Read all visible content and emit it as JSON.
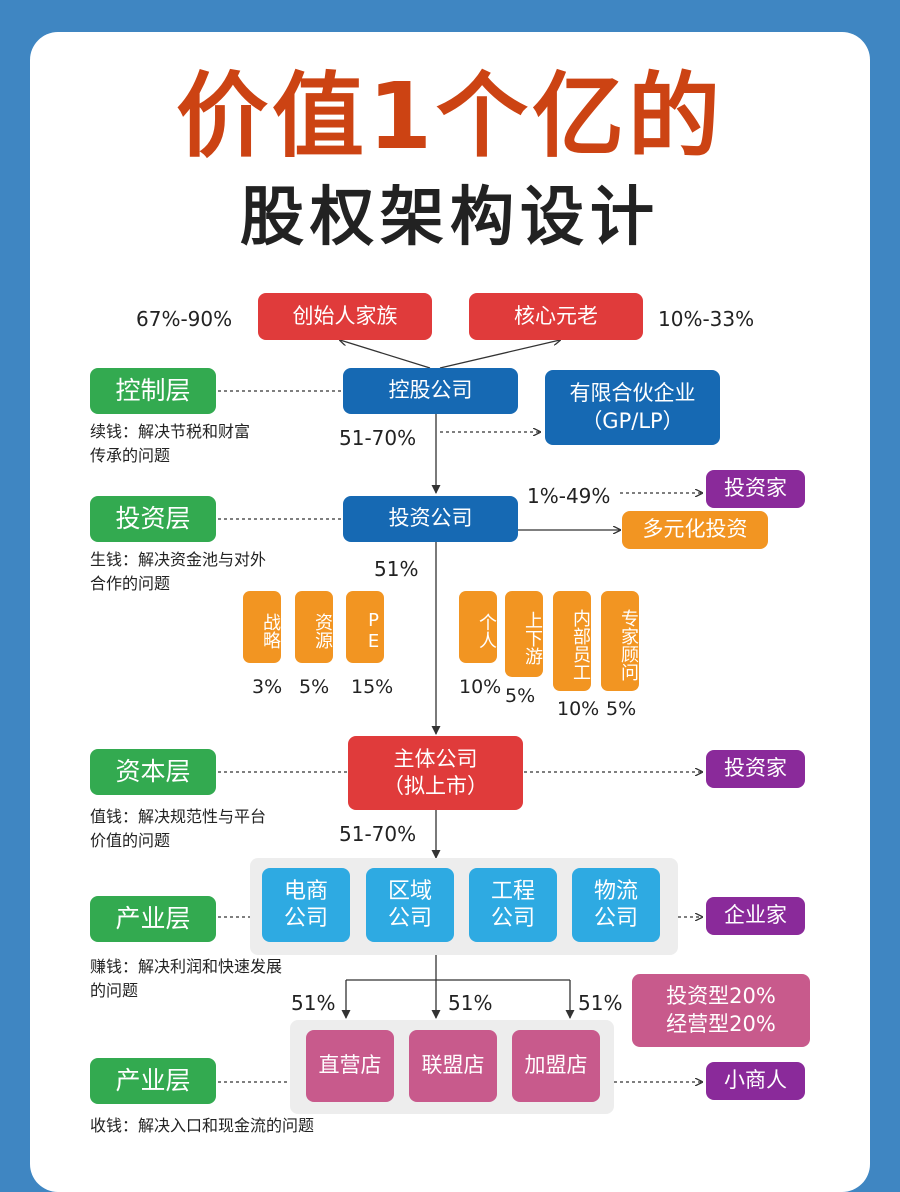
{
  "title": {
    "line1": "价值1个亿的",
    "line2": "股权架构设计"
  },
  "top": {
    "founder": "创始人家族",
    "core": "核心元老",
    "founder_pct": "67%-90%",
    "core_pct": "10%-33%"
  },
  "layers": [
    {
      "label": "控制层",
      "desc": "续钱：解决节税和财富\n传承的问题"
    },
    {
      "label": "投资层",
      "desc": "生钱：解决资金池与对外\n合作的问题"
    },
    {
      "label": "资本层",
      "desc": "值钱：解决规范性与平台\n价值的问题"
    },
    {
      "label": "产业层",
      "desc": "赚钱：解决利润和快速发展\n的问题"
    },
    {
      "label": "产业层",
      "desc": "收钱：解决入口和现金流的问题"
    }
  ],
  "holding": {
    "name": "控股公司",
    "pct": "51-70%",
    "partner": "有限合伙企业\n（GP/LP）"
  },
  "investment": {
    "name": "投资公司",
    "pct_out": "1%-49%",
    "investor": "投资家",
    "diversified": "多元化投资",
    "pct_down": "51%",
    "holders": [
      {
        "label": "战略",
        "pct": "3%"
      },
      {
        "label": "资源",
        "pct": "5%"
      },
      {
        "label": "PE",
        "pct": "15%"
      },
      {
        "label": "个人",
        "pct": "10%"
      },
      {
        "label": "上下游",
        "pct": "5%"
      },
      {
        "label": "内部员工",
        "pct": "10%"
      },
      {
        "label": "专家顾问",
        "pct": "5%"
      }
    ]
  },
  "main": {
    "name": "主体公司\n（拟上市）",
    "investor": "投资家",
    "pct": "51-70%"
  },
  "industry": {
    "companies": [
      "电商\n公司",
      "区域\n公司",
      "工程\n公司",
      "物流\n公司"
    ],
    "entrepreneur": "企业家"
  },
  "stores": {
    "pcts": [
      "51%",
      "51%",
      "51%"
    ],
    "names": [
      "直营店",
      "联盟店",
      "加盟店"
    ],
    "types": "投资型20%\n经营型20%",
    "merchant": "小商人"
  }
}
